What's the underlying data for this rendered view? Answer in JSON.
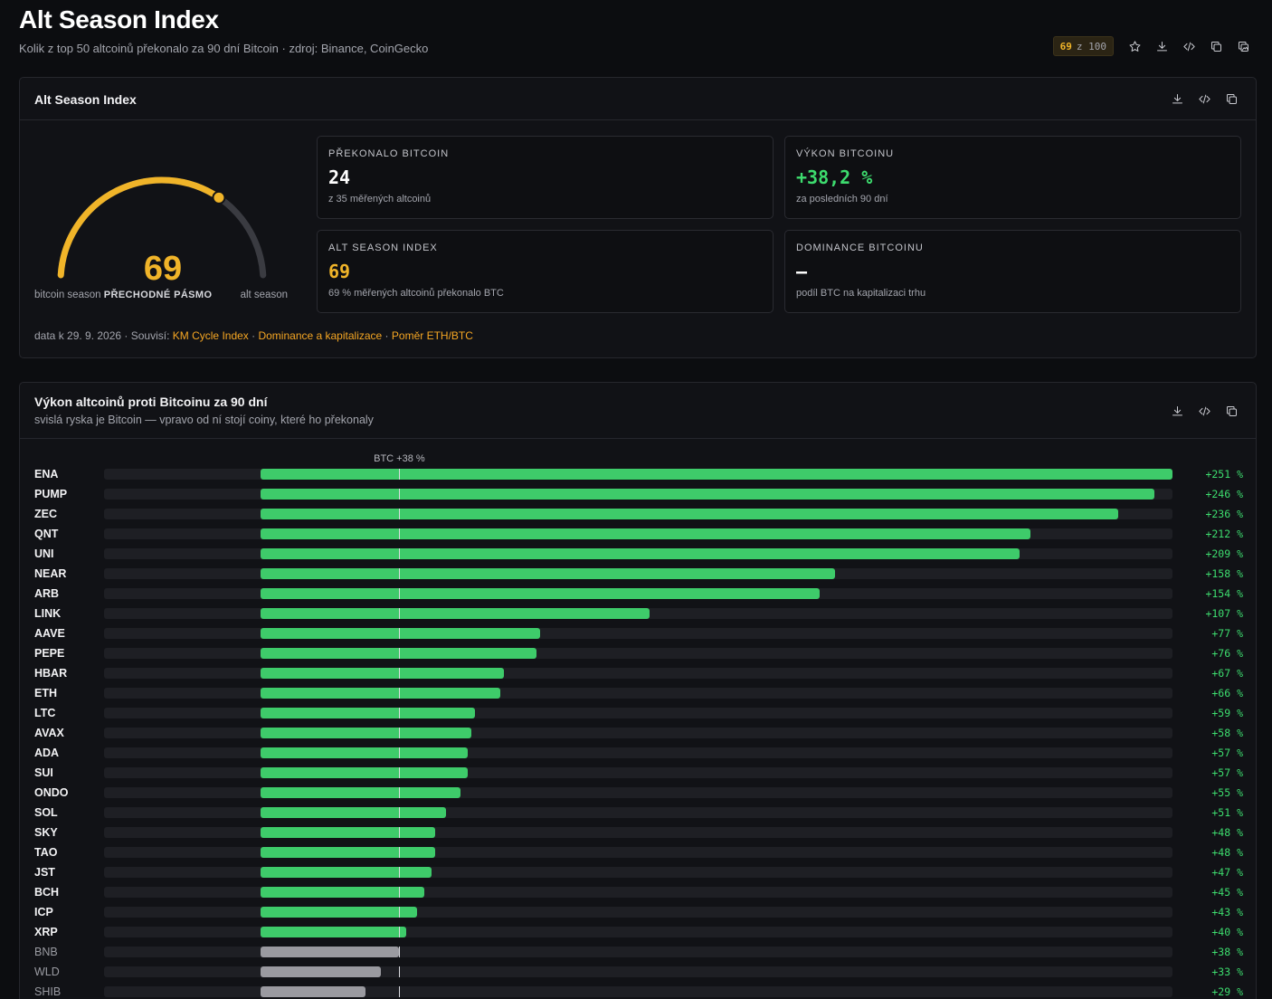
{
  "page": {
    "title": "Alt Season Index",
    "subtitle": "Kolik z top 50 altcoinů překonalo za 90 dní Bitcoin · zdroj: Binance, CoinGecko",
    "score_value": "69",
    "score_of": "z 100"
  },
  "index_card": {
    "title": "Alt Season Index",
    "gauge": {
      "value": 69,
      "value_text": "69",
      "min": 0,
      "max": 100,
      "left_label": "bitcoin season",
      "zone_label": "PŘECHODNÉ PÁSMO",
      "right_label": "alt season",
      "accent": "#f0b429"
    },
    "stats": [
      {
        "label": "PŘEKONALO BITCOIN",
        "value": "24",
        "note": "z 35 měřených altcoinů",
        "tone": "white"
      },
      {
        "label": "VÝKON BITCOINU",
        "value": "+38,2 %",
        "note": "za posledních 90 dní",
        "tone": "green"
      },
      {
        "label": "ALT SEASON INDEX",
        "value": "69",
        "note": "69 % měřených altcoinů překonalo BTC",
        "tone": "amber"
      },
      {
        "label": "DOMINANCE BITCOINU",
        "value": "–",
        "note": "podíl BTC na kapitalizaci trhu",
        "tone": "white"
      }
    ],
    "related": {
      "prefix": "data k 29. 9. 2026 · Souvisí: ",
      "links": [
        "KM Cycle Index",
        "Dominance a kapitalizace",
        "Poměr ETH/BTC"
      ],
      "separator": " · "
    }
  },
  "perf_card": {
    "title": "Výkon altcoinů proti Bitcoinu za 90 dní",
    "subtitle": "svislá ryska je Bitcoin — vpravo od ní stojí coiny, které ho překonaly"
  },
  "chart_data": {
    "type": "bar",
    "orientation": "horizontal",
    "btc_label": "BTC +38 %",
    "btc_value": 38.2,
    "xlim": [
      -100,
      251
    ],
    "colors": {
      "outperform": "#3ecb6a",
      "underperform": "#9a9aa0"
    },
    "items": [
      {
        "symbol": "ENA",
        "value": 251,
        "label": "+251 %"
      },
      {
        "symbol": "PUMP",
        "value": 246,
        "label": "+246 %"
      },
      {
        "symbol": "ZEC",
        "value": 236,
        "label": "+236 %"
      },
      {
        "symbol": "QNT",
        "value": 212,
        "label": "+212 %"
      },
      {
        "symbol": "UNI",
        "value": 209,
        "label": "+209 %"
      },
      {
        "symbol": "NEAR",
        "value": 158,
        "label": "+158 %"
      },
      {
        "symbol": "ARB",
        "value": 154,
        "label": "+154 %"
      },
      {
        "symbol": "LINK",
        "value": 107,
        "label": "+107 %"
      },
      {
        "symbol": "AAVE",
        "value": 77,
        "label": "+77 %"
      },
      {
        "symbol": "PEPE",
        "value": 76,
        "label": "+76 %"
      },
      {
        "symbol": "HBAR",
        "value": 67,
        "label": "+67 %"
      },
      {
        "symbol": "ETH",
        "value": 66,
        "label": "+66 %"
      },
      {
        "symbol": "LTC",
        "value": 59,
        "label": "+59 %"
      },
      {
        "symbol": "AVAX",
        "value": 58,
        "label": "+58 %"
      },
      {
        "symbol": "ADA",
        "value": 57,
        "label": "+57 %"
      },
      {
        "symbol": "SUI",
        "value": 57,
        "label": "+57 %"
      },
      {
        "symbol": "ONDO",
        "value": 55,
        "label": "+55 %"
      },
      {
        "symbol": "SOL",
        "value": 51,
        "label": "+51 %"
      },
      {
        "symbol": "SKY",
        "value": 48,
        "label": "+48 %"
      },
      {
        "symbol": "TAO",
        "value": 48,
        "label": "+48 %"
      },
      {
        "symbol": "JST",
        "value": 47,
        "label": "+47 %"
      },
      {
        "symbol": "BCH",
        "value": 45,
        "label": "+45 %"
      },
      {
        "symbol": "ICP",
        "value": 43,
        "label": "+43 %"
      },
      {
        "symbol": "XRP",
        "value": 40,
        "label": "+40 %"
      },
      {
        "symbol": "BNB",
        "value": 38,
        "label": "+38 %"
      },
      {
        "symbol": "WLD",
        "value": 33,
        "label": "+33 %"
      },
      {
        "symbol": "SHIB",
        "value": 29,
        "label": "+29 %"
      }
    ]
  }
}
